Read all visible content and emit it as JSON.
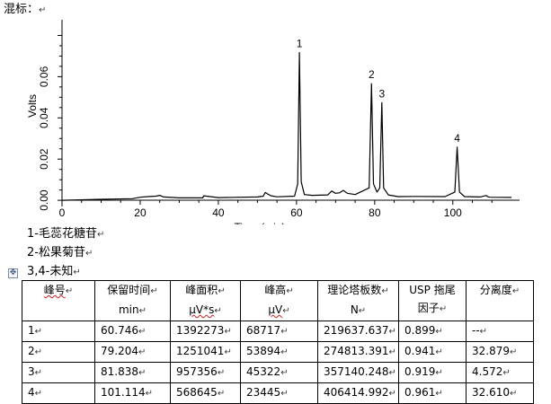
{
  "heading": "混标：",
  "paragraph_mark": "↵",
  "chart_data": {
    "type": "line",
    "xlabel": "Time (min)",
    "ylabel": "Volts",
    "xlim": [
      0,
      115
    ],
    "ylim": [
      -0.003,
      0.085
    ],
    "x_ticks": [
      0,
      20,
      40,
      60,
      80,
      100
    ],
    "y_ticks": [
      0.0,
      0.02,
      0.04,
      0.06
    ],
    "y_tick_labels": [
      "0.00",
      "0.02",
      "0.04",
      "0.06"
    ],
    "grid": false,
    "series": [
      {
        "x": [
          0,
          10,
          18,
          20,
          22,
          24,
          25,
          26,
          30,
          36,
          36.3,
          40,
          50,
          51.5,
          52,
          52.5,
          53.5,
          55,
          59.5,
          60.3,
          60.75,
          61.2,
          62,
          64,
          68,
          69,
          70,
          71,
          72,
          73,
          75,
          78.6,
          79.2,
          79.7,
          80.6,
          81.3,
          81.84,
          82.3,
          83.5,
          86,
          90,
          98,
          100.5,
          101.11,
          101.7,
          103,
          107,
          108.5,
          109,
          109.5,
          115
        ],
        "y": [
          0.0,
          0.0005,
          0.0008,
          0.0015,
          0.0018,
          0.002,
          0.0024,
          0.0016,
          0.0012,
          0.0012,
          0.0022,
          0.0013,
          0.0016,
          0.002,
          0.0038,
          0.0032,
          0.0022,
          0.0017,
          0.002,
          0.008,
          0.0717,
          0.009,
          0.0028,
          0.0024,
          0.0026,
          0.0045,
          0.0034,
          0.0036,
          0.0048,
          0.0034,
          0.0028,
          0.006,
          0.0566,
          0.008,
          0.004,
          0.006,
          0.0474,
          0.006,
          0.0026,
          0.0018,
          0.0019,
          0.0018,
          0.004,
          0.0258,
          0.004,
          0.0018,
          0.0016,
          0.0023,
          0.0017,
          0.0015,
          0.0014
        ]
      }
    ],
    "peaks": [
      {
        "label": "1",
        "x": 60.746,
        "y": 0.0717
      },
      {
        "label": "2",
        "x": 79.204,
        "y": 0.0566
      },
      {
        "label": "3",
        "x": 81.838,
        "y": 0.0474
      },
      {
        "label": "4",
        "x": 101.114,
        "y": 0.0258
      }
    ],
    "line_color": "#000000"
  },
  "legend": {
    "line1": "1-毛蕊花糖苷",
    "line2": "2-松果菊苷",
    "line3": "3,4-未知"
  },
  "table_handle": "✥",
  "table": {
    "headers": [
      {
        "l1": "峰号",
        "l2": ""
      },
      {
        "l1": "保留时间",
        "l2": "min"
      },
      {
        "l1": "峰面积",
        "l2": "µV*s"
      },
      {
        "l1": "峰高",
        "l2": "µV"
      },
      {
        "l1": "理论塔板数",
        "l2": "N"
      },
      {
        "l1": "USP 拖尾",
        "l2": "因子"
      },
      {
        "l1": "分离度",
        "l2": ""
      }
    ],
    "rows": [
      [
        "1",
        "60.746",
        "1392273",
        "68717",
        "219637.637",
        "0.899",
        "--"
      ],
      [
        "2",
        "79.204",
        "1251041",
        "53894",
        "274813.391",
        "0.941",
        "32.879"
      ],
      [
        "3",
        "81.838",
        "957356",
        "45322",
        "357140.248",
        "0.919",
        "4.572"
      ],
      [
        "4",
        "101.114",
        "568645",
        "23445",
        "406414.992",
        "0.961",
        "32.610"
      ]
    ]
  }
}
